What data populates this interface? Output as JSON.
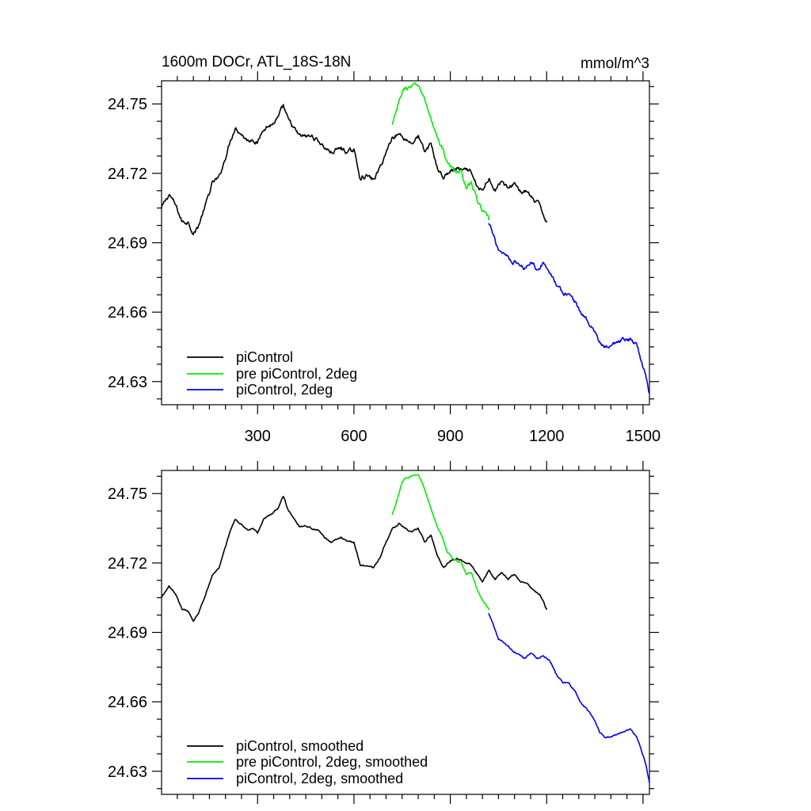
{
  "page_title": "1600m DOCr, ATL_18S-18N",
  "units": "mmol/m^3",
  "colors": {
    "piControl": "#000000",
    "pre_piControl_2deg": "#00ee00",
    "piControl_2deg": "#0000ee"
  },
  "chart_data": [
    {
      "type": "line",
      "title": "1600m DOCr, ATL_18S-18N",
      "units_label": "mmol/m^3",
      "xlabel": "",
      "ylabel": "",
      "xlim": [
        1,
        1520
      ],
      "ylim": [
        24.62,
        24.76
      ],
      "xticks": [
        300,
        600,
        900,
        1200,
        1500
      ],
      "xtick_labels": [
        "300",
        "600",
        "900",
        "1200",
        "1500"
      ],
      "yticks": [
        24.63,
        24.66,
        24.69,
        24.72,
        24.75
      ],
      "ytick_labels": [
        "24.63",
        "24.66",
        "24.69",
        "24.72",
        "24.75"
      ],
      "grid": false,
      "legend_position": "bottom-left",
      "noise": 0.0014,
      "series": [
        {
          "name": "piControl",
          "color": "#000000",
          "x": [
            1,
            25,
            45,
            65,
            85,
            100,
            115,
            135,
            160,
            180,
            200,
            215,
            230,
            250,
            270,
            285,
            300,
            320,
            345,
            365,
            380,
            395,
            410,
            430,
            450,
            470,
            490,
            510,
            530,
            560,
            580,
            600,
            620,
            640,
            660,
            680,
            700,
            720,
            740,
            760,
            780,
            800,
            820,
            840,
            860,
            880,
            900,
            920,
            940,
            960,
            980,
            1000,
            1020,
            1040,
            1060,
            1080,
            1100,
            1120,
            1140,
            1160,
            1180,
            1200
          ],
          "y": [
            24.705,
            24.711,
            24.706,
            24.699,
            24.699,
            24.694,
            24.697,
            24.705,
            24.716,
            24.718,
            24.727,
            24.734,
            24.74,
            24.737,
            24.734,
            24.735,
            24.733,
            24.74,
            24.741,
            24.744,
            24.749,
            24.743,
            24.74,
            24.736,
            24.736,
            24.736,
            24.734,
            24.731,
            24.729,
            24.731,
            24.729,
            24.73,
            24.718,
            24.719,
            24.717,
            24.722,
            24.729,
            24.736,
            24.737,
            24.735,
            24.733,
            24.736,
            24.729,
            24.733,
            24.722,
            24.718,
            24.721,
            24.722,
            24.721,
            24.721,
            24.715,
            24.712,
            24.718,
            24.713,
            24.717,
            24.713,
            24.716,
            24.712,
            24.712,
            24.708,
            24.706,
            24.699
          ]
        },
        {
          "name": "pre piControl, 2deg",
          "color": "#00ee00",
          "x": [
            720,
            735,
            750,
            760,
            770,
            785,
            800,
            815,
            830,
            845,
            860,
            875,
            890,
            905,
            920,
            935,
            950,
            965,
            980,
            995,
            1010,
            1020
          ],
          "y": [
            24.741,
            24.748,
            24.755,
            24.757,
            24.757,
            24.758,
            24.758,
            24.754,
            24.748,
            24.741,
            24.735,
            24.731,
            24.725,
            24.722,
            24.721,
            24.72,
            24.714,
            24.716,
            24.71,
            24.705,
            24.702,
            24.7
          ]
        },
        {
          "name": "piControl, 2deg",
          "color": "#0000ee",
          "x": [
            1020,
            1035,
            1050,
            1065,
            1080,
            1095,
            1110,
            1130,
            1150,
            1170,
            1190,
            1210,
            1230,
            1250,
            1270,
            1290,
            1310,
            1330,
            1350,
            1365,
            1380,
            1400,
            1420,
            1440,
            1460,
            1480,
            1490,
            1500,
            1510,
            1520
          ],
          "y": [
            24.698,
            24.693,
            24.687,
            24.686,
            24.684,
            24.682,
            24.681,
            24.679,
            24.682,
            24.679,
            24.681,
            24.678,
            24.672,
            24.668,
            24.668,
            24.664,
            24.659,
            24.656,
            24.652,
            24.647,
            24.644,
            24.645,
            24.646,
            24.648,
            24.648,
            24.646,
            24.642,
            24.637,
            24.632,
            24.625
          ]
        }
      ]
    },
    {
      "type": "line",
      "title": "",
      "xlabel": "",
      "ylabel": "",
      "xlim": [
        1,
        1520
      ],
      "ylim": [
        24.62,
        24.76
      ],
      "xticks": [
        300,
        600,
        900,
        1200,
        1500
      ],
      "xtick_labels": [],
      "yticks": [
        24.63,
        24.66,
        24.69,
        24.72,
        24.75
      ],
      "ytick_labels": [
        "24.63",
        "24.66",
        "24.69",
        "24.72",
        "24.75"
      ],
      "grid": false,
      "legend_position": "bottom-left",
      "noise": 0.0005,
      "series": [
        {
          "name": "piControl, smoothed",
          "color": "#000000",
          "x": [
            1,
            25,
            45,
            65,
            85,
            100,
            115,
            135,
            160,
            180,
            200,
            215,
            230,
            250,
            270,
            285,
            300,
            320,
            345,
            365,
            380,
            395,
            410,
            430,
            450,
            470,
            490,
            510,
            530,
            560,
            580,
            600,
            620,
            640,
            660,
            680,
            700,
            720,
            740,
            760,
            780,
            800,
            820,
            840,
            860,
            880,
            900,
            920,
            940,
            960,
            980,
            1000,
            1020,
            1040,
            1060,
            1080,
            1100,
            1120,
            1140,
            1160,
            1180,
            1200
          ],
          "y": [
            24.705,
            24.71,
            24.706,
            24.7,
            24.699,
            24.695,
            24.698,
            24.705,
            24.715,
            24.718,
            24.727,
            24.734,
            24.739,
            24.737,
            24.734,
            24.735,
            24.733,
            24.739,
            24.741,
            24.744,
            24.749,
            24.743,
            24.74,
            24.736,
            24.736,
            24.735,
            24.734,
            24.731,
            24.729,
            24.731,
            24.729,
            24.729,
            24.719,
            24.719,
            24.718,
            24.722,
            24.729,
            24.735,
            24.737,
            24.735,
            24.733,
            24.735,
            24.729,
            24.732,
            24.723,
            24.718,
            24.721,
            24.722,
            24.721,
            24.72,
            24.716,
            24.712,
            24.717,
            24.713,
            24.716,
            24.713,
            24.715,
            24.712,
            24.711,
            24.708,
            24.706,
            24.7
          ]
        },
        {
          "name": "pre piControl, 2deg, smoothed",
          "color": "#00ee00",
          "x": [
            720,
            735,
            750,
            760,
            770,
            785,
            800,
            815,
            830,
            845,
            860,
            875,
            890,
            905,
            920,
            935,
            950,
            965,
            980,
            995,
            1010,
            1020
          ],
          "y": [
            24.741,
            24.748,
            24.755,
            24.757,
            24.757,
            24.758,
            24.758,
            24.754,
            24.748,
            24.741,
            24.735,
            24.731,
            24.725,
            24.722,
            24.721,
            24.72,
            24.715,
            24.716,
            24.71,
            24.705,
            24.702,
            24.7
          ]
        },
        {
          "name": "piControl, 2deg, smoothed",
          "color": "#0000ee",
          "x": [
            1020,
            1035,
            1050,
            1065,
            1080,
            1095,
            1110,
            1130,
            1150,
            1170,
            1190,
            1210,
            1230,
            1250,
            1270,
            1290,
            1310,
            1330,
            1350,
            1365,
            1380,
            1400,
            1420,
            1440,
            1460,
            1480,
            1490,
            1500,
            1510,
            1520
          ],
          "y": [
            24.698,
            24.693,
            24.687,
            24.686,
            24.684,
            24.682,
            24.681,
            24.679,
            24.681,
            24.679,
            24.68,
            24.678,
            24.672,
            24.668,
            24.668,
            24.664,
            24.659,
            24.656,
            24.652,
            24.647,
            24.645,
            24.645,
            24.646,
            24.647,
            24.648,
            24.645,
            24.641,
            24.637,
            24.632,
            24.625
          ]
        }
      ]
    }
  ]
}
